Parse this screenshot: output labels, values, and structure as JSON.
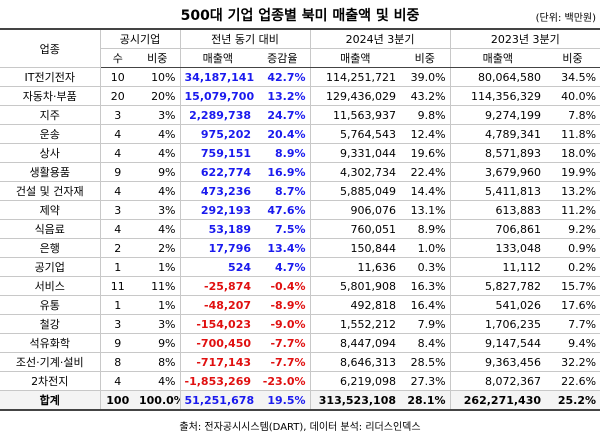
{
  "header": {
    "title": "500대 기업 업종별 북미 매출액 및 비중",
    "unit": "(단위: 백만원)"
  },
  "table": {
    "group_headers": [
      "업종",
      "공시기업",
      "전년 동기 대비",
      "2024년 3분기",
      "2023년 3분기"
    ],
    "sub_headers": [
      "수",
      "비중",
      "매출액",
      "증감율",
      "매출액",
      "비중",
      "매출액",
      "비중"
    ],
    "rows": [
      [
        "IT전기전자",
        "10",
        "10%",
        "34,187,141",
        "42.7%",
        "114,251,721",
        "39.0%",
        "80,064,580",
        "34.5%"
      ],
      [
        "자동차·부품",
        "20",
        "20%",
        "15,079,700",
        "13.2%",
        "129,436,029",
        "43.2%",
        "114,356,329",
        "40.0%"
      ],
      [
        "지주",
        "3",
        "3%",
        "2,289,738",
        "24.7%",
        "11,563,937",
        "9.8%",
        "9,274,199",
        "7.8%"
      ],
      [
        "운송",
        "4",
        "4%",
        "975,202",
        "20.4%",
        "5,764,543",
        "12.4%",
        "4,789,341",
        "11.8%"
      ],
      [
        "상사",
        "4",
        "4%",
        "759,151",
        "8.9%",
        "9,331,044",
        "19.6%",
        "8,571,893",
        "18.0%"
      ],
      [
        "생활용품",
        "9",
        "9%",
        "622,774",
        "16.9%",
        "4,302,734",
        "22.4%",
        "3,679,960",
        "19.9%"
      ],
      [
        "건설 및 건자재",
        "4",
        "4%",
        "473,236",
        "8.7%",
        "5,885,049",
        "14.4%",
        "5,411,813",
        "13.2%"
      ],
      [
        "제약",
        "3",
        "3%",
        "292,193",
        "47.6%",
        "906,076",
        "13.1%",
        "613,883",
        "11.2%"
      ],
      [
        "식음료",
        "4",
        "4%",
        "53,189",
        "7.5%",
        "760,051",
        "8.9%",
        "706,861",
        "9.2%"
      ],
      [
        "은행",
        "2",
        "2%",
        "17,796",
        "13.4%",
        "150,844",
        "1.0%",
        "133,048",
        "0.9%"
      ],
      [
        "공기업",
        "1",
        "1%",
        "524",
        "4.7%",
        "11,636",
        "0.3%",
        "11,112",
        "0.2%"
      ],
      [
        "서비스",
        "11",
        "11%",
        "-25,874",
        "-0.4%",
        "5,801,908",
        "16.3%",
        "5,827,782",
        "15.7%"
      ],
      [
        "유통",
        "1",
        "1%",
        "-48,207",
        "-8.9%",
        "492,818",
        "16.4%",
        "541,026",
        "17.6%"
      ],
      [
        "철강",
        "3",
        "3%",
        "-154,023",
        "-9.0%",
        "1,552,212",
        "7.9%",
        "1,706,235",
        "7.7%"
      ],
      [
        "석유화학",
        "9",
        "9%",
        "-700,450",
        "-7.7%",
        "8,447,094",
        "8.4%",
        "9,147,544",
        "9.4%"
      ],
      [
        "조선·기계·설비",
        "8",
        "8%",
        "-717,143",
        "-7.7%",
        "8,646,313",
        "28.5%",
        "9,363,456",
        "32.2%"
      ],
      [
        "2차전지",
        "4",
        "4%",
        "-1,853,269",
        "-23.0%",
        "6,219,098",
        "27.3%",
        "8,072,367",
        "22.6%"
      ]
    ],
    "total": [
      "합계",
      "100",
      "100.0%",
      "51,251,678",
      "19.5%",
      "313,523,108",
      "28.1%",
      "262,271,430",
      "25.2%"
    ],
    "positive_color": "#1a1aee",
    "negative_color": "#e01010"
  },
  "footer": {
    "source": "출처: 전자공시시스템(DART), 데이터 분석: 리더스인덱스"
  }
}
